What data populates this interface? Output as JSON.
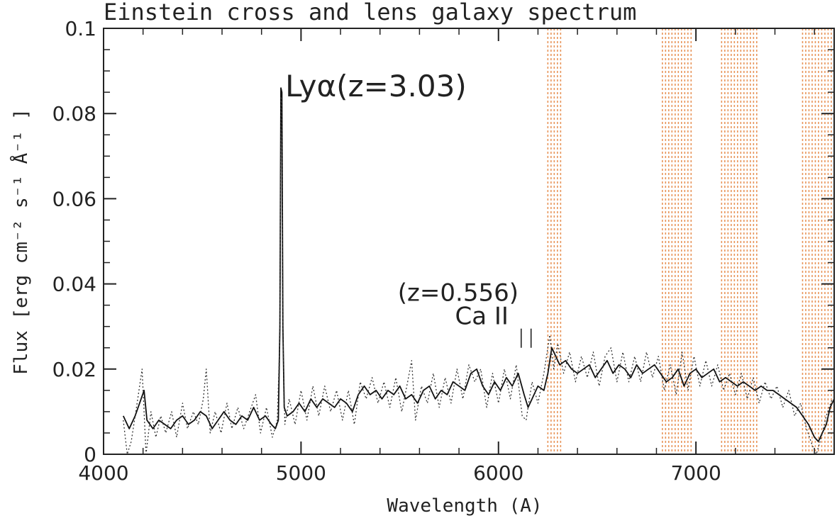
{
  "chart_data": {
    "type": "line",
    "title": "Einstein cross and lens galaxy spectrum",
    "xlabel": "Wavelength (A)",
    "ylabel": "Flux [erg cm⁻² s⁻¹ Å⁻¹ ]",
    "xlim": [
      4000,
      7700
    ],
    "ylim": [
      0,
      0.1
    ],
    "x_ticks": [
      4000,
      5000,
      6000,
      7000
    ],
    "x_tick_labels": [
      "4000",
      "5000",
      "6000",
      "7000"
    ],
    "y_ticks": [
      0,
      0.02,
      0.04,
      0.06,
      0.08,
      0.1
    ],
    "y_tick_labels": [
      "0",
      "0.02",
      "0.04",
      "0.06",
      "0.08",
      "0.1"
    ],
    "grid": false,
    "series": [
      {
        "style": "solid",
        "color": "#111111",
        "points": [
          [
            4100,
            0.009
          ],
          [
            4130,
            0.006
          ],
          [
            4160,
            0.009
          ],
          [
            4190,
            0.013
          ],
          [
            4205,
            0.015
          ],
          [
            4220,
            0.008
          ],
          [
            4250,
            0.006
          ],
          [
            4280,
            0.008
          ],
          [
            4310,
            0.007
          ],
          [
            4340,
            0.006
          ],
          [
            4370,
            0.008
          ],
          [
            4400,
            0.009
          ],
          [
            4430,
            0.007
          ],
          [
            4460,
            0.008
          ],
          [
            4490,
            0.01
          ],
          [
            4520,
            0.009
          ],
          [
            4550,
            0.006
          ],
          [
            4580,
            0.008
          ],
          [
            4610,
            0.01
          ],
          [
            4640,
            0.008
          ],
          [
            4670,
            0.007
          ],
          [
            4700,
            0.009
          ],
          [
            4730,
            0.008
          ],
          [
            4760,
            0.011
          ],
          [
            4790,
            0.008
          ],
          [
            4820,
            0.009
          ],
          [
            4850,
            0.007
          ],
          [
            4870,
            0.006
          ],
          [
            4885,
            0.008
          ],
          [
            4893,
            0.03
          ],
          [
            4898,
            0.086
          ],
          [
            4903,
            0.085
          ],
          [
            4908,
            0.03
          ],
          [
            4915,
            0.011
          ],
          [
            4930,
            0.009
          ],
          [
            4960,
            0.01
          ],
          [
            4990,
            0.012
          ],
          [
            5020,
            0.01
          ],
          [
            5050,
            0.013
          ],
          [
            5080,
            0.011
          ],
          [
            5110,
            0.013
          ],
          [
            5140,
            0.012
          ],
          [
            5170,
            0.011
          ],
          [
            5200,
            0.013
          ],
          [
            5230,
            0.012
          ],
          [
            5260,
            0.01
          ],
          [
            5290,
            0.014
          ],
          [
            5320,
            0.016
          ],
          [
            5350,
            0.014
          ],
          [
            5380,
            0.015
          ],
          [
            5410,
            0.013
          ],
          [
            5440,
            0.015
          ],
          [
            5470,
            0.014
          ],
          [
            5500,
            0.016
          ],
          [
            5530,
            0.013
          ],
          [
            5560,
            0.014
          ],
          [
            5590,
            0.012
          ],
          [
            5620,
            0.015
          ],
          [
            5650,
            0.016
          ],
          [
            5680,
            0.013
          ],
          [
            5710,
            0.015
          ],
          [
            5740,
            0.014
          ],
          [
            5770,
            0.017
          ],
          [
            5800,
            0.016
          ],
          [
            5830,
            0.015
          ],
          [
            5860,
            0.019
          ],
          [
            5890,
            0.02
          ],
          [
            5920,
            0.016
          ],
          [
            5950,
            0.014
          ],
          [
            5980,
            0.017
          ],
          [
            6010,
            0.015
          ],
          [
            6040,
            0.018
          ],
          [
            6070,
            0.016
          ],
          [
            6100,
            0.019
          ],
          [
            6130,
            0.014
          ],
          [
            6150,
            0.011
          ],
          [
            6170,
            0.013
          ],
          [
            6200,
            0.016
          ],
          [
            6230,
            0.015
          ],
          [
            6250,
            0.019
          ],
          [
            6270,
            0.025
          ],
          [
            6290,
            0.023
          ],
          [
            6310,
            0.021
          ],
          [
            6340,
            0.022
          ],
          [
            6370,
            0.02
          ],
          [
            6400,
            0.019
          ],
          [
            6430,
            0.02
          ],
          [
            6460,
            0.021
          ],
          [
            6490,
            0.018
          ],
          [
            6520,
            0.02
          ],
          [
            6550,
            0.022
          ],
          [
            6580,
            0.019
          ],
          [
            6610,
            0.021
          ],
          [
            6640,
            0.02
          ],
          [
            6670,
            0.018
          ],
          [
            6700,
            0.021
          ],
          [
            6730,
            0.019
          ],
          [
            6760,
            0.02
          ],
          [
            6790,
            0.021
          ],
          [
            6820,
            0.019
          ],
          [
            6850,
            0.017
          ],
          [
            6880,
            0.018
          ],
          [
            6910,
            0.02
          ],
          [
            6940,
            0.016
          ],
          [
            6970,
            0.019
          ],
          [
            7000,
            0.02
          ],
          [
            7030,
            0.018
          ],
          [
            7060,
            0.019
          ],
          [
            7090,
            0.02
          ],
          [
            7120,
            0.017
          ],
          [
            7150,
            0.018
          ],
          [
            7180,
            0.017
          ],
          [
            7210,
            0.016
          ],
          [
            7240,
            0.017
          ],
          [
            7270,
            0.016
          ],
          [
            7300,
            0.015
          ],
          [
            7330,
            0.016
          ],
          [
            7360,
            0.015
          ],
          [
            7390,
            0.015
          ],
          [
            7420,
            0.014
          ],
          [
            7450,
            0.013
          ],
          [
            7480,
            0.012
          ],
          [
            7510,
            0.011
          ],
          [
            7540,
            0.009
          ],
          [
            7570,
            0.007
          ],
          [
            7600,
            0.004
          ],
          [
            7620,
            0.003
          ],
          [
            7640,
            0.005
          ],
          [
            7660,
            0.007
          ],
          [
            7680,
            0.011
          ],
          [
            7700,
            0.013
          ]
        ]
      },
      {
        "style": "dotted",
        "color": "#333333",
        "points": [
          [
            4100,
            0.008
          ],
          [
            4120,
            0.0
          ],
          [
            4140,
            0.003
          ],
          [
            4170,
            0.012
          ],
          [
            4195,
            0.02
          ],
          [
            4215,
            0.0
          ],
          [
            4240,
            0.01
          ],
          [
            4265,
            0.004
          ],
          [
            4290,
            0.009
          ],
          [
            4315,
            0.005
          ],
          [
            4345,
            0.01
          ],
          [
            4370,
            0.004
          ],
          [
            4400,
            0.012
          ],
          [
            4425,
            0.006
          ],
          [
            4455,
            0.01
          ],
          [
            4480,
            0.007
          ],
          [
            4505,
            0.013
          ],
          [
            4520,
            0.02
          ],
          [
            4540,
            0.005
          ],
          [
            4565,
            0.01
          ],
          [
            4595,
            0.005
          ],
          [
            4625,
            0.012
          ],
          [
            4650,
            0.006
          ],
          [
            4680,
            0.011
          ],
          [
            4710,
            0.006
          ],
          [
            4740,
            0.01
          ],
          [
            4770,
            0.014
          ],
          [
            4795,
            0.005
          ],
          [
            4825,
            0.011
          ],
          [
            4855,
            0.004
          ],
          [
            4880,
            0.008
          ],
          [
            4893,
            0.028
          ],
          [
            4898,
            0.084
          ],
          [
            4903,
            0.083
          ],
          [
            4908,
            0.028
          ],
          [
            4918,
            0.007
          ],
          [
            4940,
            0.013
          ],
          [
            4970,
            0.007
          ],
          [
            5000,
            0.015
          ],
          [
            5030,
            0.008
          ],
          [
            5060,
            0.016
          ],
          [
            5090,
            0.009
          ],
          [
            5120,
            0.016
          ],
          [
            5150,
            0.01
          ],
          [
            5180,
            0.015
          ],
          [
            5210,
            0.008
          ],
          [
            5240,
            0.015
          ],
          [
            5270,
            0.007
          ],
          [
            5300,
            0.017
          ],
          [
            5330,
            0.013
          ],
          [
            5360,
            0.018
          ],
          [
            5390,
            0.012
          ],
          [
            5420,
            0.017
          ],
          [
            5450,
            0.011
          ],
          [
            5480,
            0.018
          ],
          [
            5510,
            0.01
          ],
          [
            5540,
            0.017
          ],
          [
            5560,
            0.022
          ],
          [
            5580,
            0.008
          ],
          [
            5610,
            0.016
          ],
          [
            5640,
            0.012
          ],
          [
            5670,
            0.019
          ],
          [
            5700,
            0.011
          ],
          [
            5730,
            0.018
          ],
          [
            5760,
            0.012
          ],
          [
            5790,
            0.02
          ],
          [
            5820,
            0.013
          ],
          [
            5850,
            0.021
          ],
          [
            5880,
            0.017
          ],
          [
            5910,
            0.02
          ],
          [
            5940,
            0.011
          ],
          [
            5970,
            0.019
          ],
          [
            6000,
            0.012
          ],
          [
            6030,
            0.02
          ],
          [
            6060,
            0.013
          ],
          [
            6090,
            0.021
          ],
          [
            6120,
            0.009
          ],
          [
            6140,
            0.008
          ],
          [
            6170,
            0.017
          ],
          [
            6200,
            0.012
          ],
          [
            6230,
            0.019
          ],
          [
            6260,
            0.028
          ],
          [
            6280,
            0.02
          ],
          [
            6300,
            0.026
          ],
          [
            6330,
            0.019
          ],
          [
            6360,
            0.024
          ],
          [
            6390,
            0.017
          ],
          [
            6420,
            0.023
          ],
          [
            6450,
            0.018
          ],
          [
            6480,
            0.024
          ],
          [
            6510,
            0.016
          ],
          [
            6540,
            0.023
          ],
          [
            6570,
            0.025
          ],
          [
            6600,
            0.017
          ],
          [
            6630,
            0.024
          ],
          [
            6660,
            0.017
          ],
          [
            6690,
            0.023
          ],
          [
            6720,
            0.017
          ],
          [
            6750,
            0.024
          ],
          [
            6780,
            0.018
          ],
          [
            6810,
            0.023
          ],
          [
            6840,
            0.015
          ],
          [
            6870,
            0.021
          ],
          [
            6900,
            0.014
          ],
          [
            6930,
            0.024
          ],
          [
            6960,
            0.015
          ],
          [
            6990,
            0.023
          ],
          [
            7020,
            0.016
          ],
          [
            7050,
            0.022
          ],
          [
            7080,
            0.016
          ],
          [
            7110,
            0.021
          ],
          [
            7140,
            0.015
          ],
          [
            7170,
            0.019
          ],
          [
            7200,
            0.014
          ],
          [
            7230,
            0.019
          ],
          [
            7260,
            0.013
          ],
          [
            7290,
            0.018
          ],
          [
            7320,
            0.012
          ],
          [
            7350,
            0.017
          ],
          [
            7380,
            0.013
          ],
          [
            7410,
            0.016
          ],
          [
            7440,
            0.011
          ],
          [
            7470,
            0.015
          ],
          [
            7500,
            0.009
          ],
          [
            7530,
            0.012
          ],
          [
            7560,
            0.006
          ],
          [
            7590,
            0.002
          ],
          [
            7610,
            0.0
          ],
          [
            7635,
            0.004
          ],
          [
            7660,
            0.009
          ],
          [
            7690,
            0.013
          ]
        ]
      }
    ],
    "shaded_bands": [
      {
        "x0": 6250,
        "x1": 6320,
        "color": "#e8955a"
      },
      {
        "x0": 6830,
        "x1": 6980,
        "color": "#e8955a"
      },
      {
        "x0": 7130,
        "x1": 7320,
        "color": "#e8955a"
      },
      {
        "x0": 7540,
        "x1": 7700,
        "color": "#e8955a"
      }
    ],
    "annotations": [
      {
        "text": "Lyα(z=3.03)",
        "x": 4920,
        "y": 0.084,
        "size": "big"
      },
      {
        "text": "(z=0.556)",
        "x": 5490,
        "y": 0.036,
        "size": "mid"
      },
      {
        "text": "Ca  II",
        "x": 5780,
        "y": 0.0305,
        "size": "mid"
      }
    ],
    "markers": [
      {
        "x": 6115,
        "y0": 0.025,
        "y1": 0.0295
      },
      {
        "x": 6165,
        "y0": 0.025,
        "y1": 0.0295
      }
    ]
  }
}
